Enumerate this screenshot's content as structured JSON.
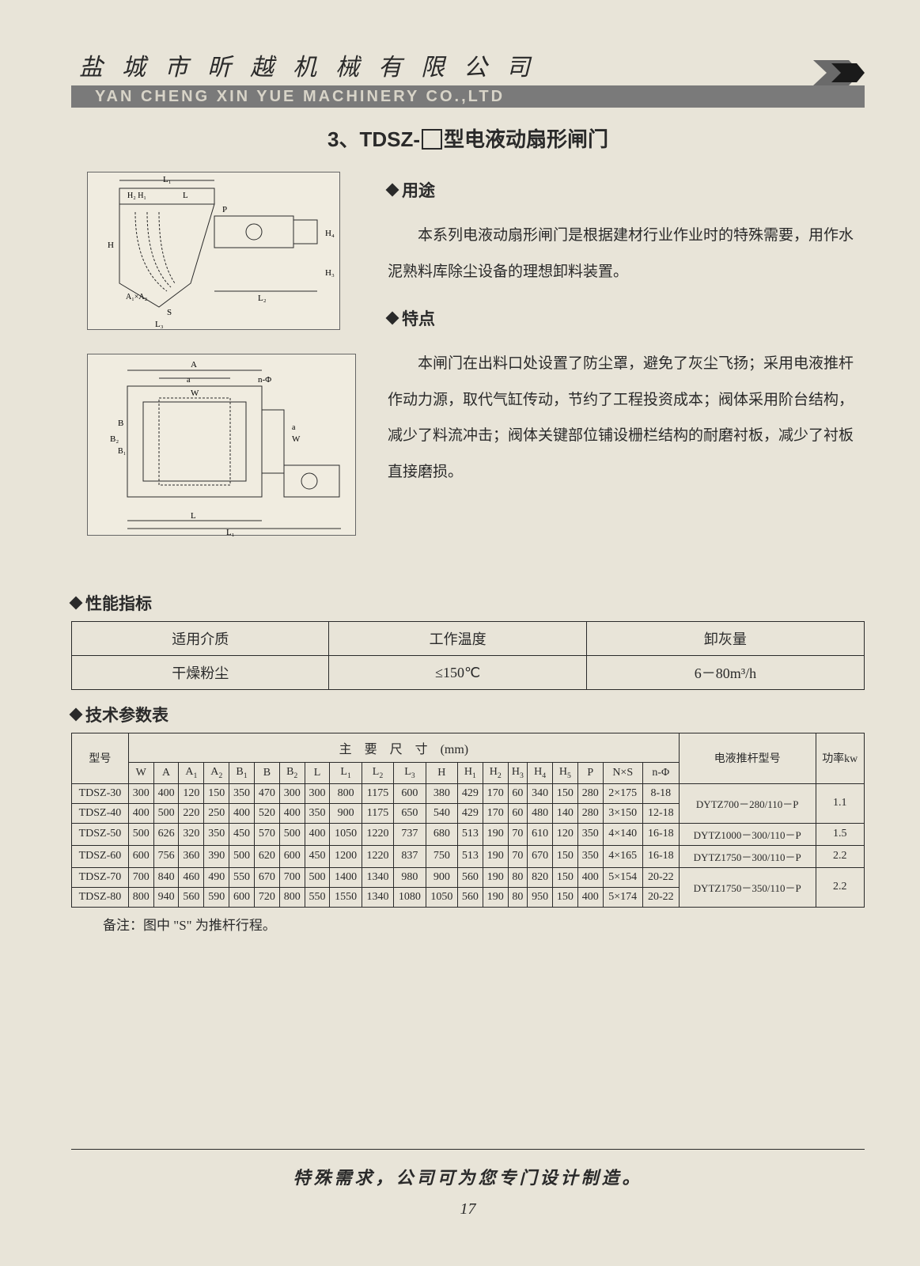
{
  "header": {
    "company_cn": "盐城市昕越机械有限公司",
    "company_en": "YAN CHENG XIN YUE MACHINERY CO.,LTD"
  },
  "title": {
    "num": "3、",
    "prefix": "TDSZ-",
    "suffix": "型电液动扇形闸门"
  },
  "sections": {
    "usage_head": "用途",
    "usage_body": "本系列电液动扇形闸门是根据建材行业作业时的特殊需要，用作水泥熟料库除尘设备的理想卸料装置。",
    "feature_head": "特点",
    "feature_body": "本闸门在出料口处设置了防尘罩，避免了灰尘飞扬；采用电液推杆作动力源，取代气缸传动，节约了工程投资成本；阀体采用阶台结构，减少了料流冲击；阀体关键部位铺设栅栏结构的耐磨衬板，减少了衬板直接磨损。",
    "perf_head": "性能指标",
    "tech_head": "技术参数表"
  },
  "perf_table": {
    "headers": [
      "适用介质",
      "工作温度",
      "卸灰量"
    ],
    "values": [
      "干燥粉尘",
      "≤150℃",
      "6－80m³/h"
    ]
  },
  "tech_table": {
    "group_dim": "主　要　尺　寸　(mm)",
    "col_model": "型号",
    "col_pusher": "电液推杆型号",
    "col_power": "功率kw",
    "dim_cols": [
      "W",
      "A",
      "A₁",
      "A₂",
      "B₁",
      "B",
      "B₂",
      "L",
      "L₁",
      "L₂",
      "L₃",
      "H",
      "H₁",
      "H₂",
      "H₃",
      "H₄",
      "H₅",
      "P",
      "N×S",
      "n-Φ"
    ],
    "rows": [
      {
        "model": "TDSZ-30",
        "d": [
          "300",
          "400",
          "120",
          "150",
          "350",
          "470",
          "300",
          "300",
          "800",
          "1175",
          "600",
          "380",
          "429",
          "170",
          "60",
          "340",
          "150",
          "280",
          "2×175",
          "8-18"
        ],
        "pusher": "DYTZ700－280/110－P",
        "power": "1.1"
      },
      {
        "model": "TDSZ-40",
        "d": [
          "400",
          "500",
          "220",
          "250",
          "400",
          "520",
          "400",
          "350",
          "900",
          "1175",
          "650",
          "540",
          "429",
          "170",
          "60",
          "480",
          "140",
          "280",
          "3×150",
          "12-18"
        ],
        "pusher": "DYTZ700－280/110－P",
        "power": "1.1"
      },
      {
        "model": "TDSZ-50",
        "d": [
          "500",
          "626",
          "320",
          "350",
          "450",
          "570",
          "500",
          "400",
          "1050",
          "1220",
          "737",
          "680",
          "513",
          "190",
          "70",
          "610",
          "120",
          "350",
          "4×140",
          "16-18"
        ],
        "pusher": "DYTZ1000－300/110－P",
        "power": "1.5"
      },
      {
        "model": "TDSZ-60",
        "d": [
          "600",
          "756",
          "360",
          "390",
          "500",
          "620",
          "600",
          "450",
          "1200",
          "1220",
          "837",
          "750",
          "513",
          "190",
          "70",
          "670",
          "150",
          "350",
          "4×165",
          "16-18"
        ],
        "pusher": "DYTZ1750－300/110－P",
        "power": "2.2"
      },
      {
        "model": "TDSZ-70",
        "d": [
          "700",
          "840",
          "460",
          "490",
          "550",
          "670",
          "700",
          "500",
          "1400",
          "1340",
          "980",
          "900",
          "560",
          "190",
          "80",
          "820",
          "150",
          "400",
          "5×154",
          "20-22"
        ],
        "pusher": "DYTZ1750－350/110－P",
        "power": "2.2"
      },
      {
        "model": "TDSZ-80",
        "d": [
          "800",
          "940",
          "560",
          "590",
          "600",
          "720",
          "800",
          "550",
          "1550",
          "1340",
          "1080",
          "1050",
          "560",
          "190",
          "80",
          "950",
          "150",
          "400",
          "5×174",
          "20-22"
        ],
        "pusher": "DYTZ1750－350/110－P",
        "power": "2.2"
      }
    ],
    "note": "备注：图中 \"S\" 为推杆行程。"
  },
  "footer": {
    "text": "特殊需求，公司可为您专门设计制造。",
    "page": "17"
  },
  "colors": {
    "page_bg": "#e8e4d8",
    "header_bar": "#7a7a7a",
    "header_en_text": "#d8d4c8",
    "text": "#2a2a2a",
    "logo_gray": "#6a6a6a",
    "logo_black": "#1a1a1a"
  },
  "diagram_labels": {
    "top": [
      "L₁",
      "H₂",
      "H₁",
      "L",
      "P",
      "H₄",
      "H",
      "A₁×A₂",
      "S",
      "L₃",
      "L₂",
      "H₃"
    ],
    "bottom": [
      "A",
      "a",
      "W",
      "n-Φ",
      "B₂",
      "B₁",
      "B",
      "W",
      "a",
      "L",
      "L₁"
    ]
  }
}
